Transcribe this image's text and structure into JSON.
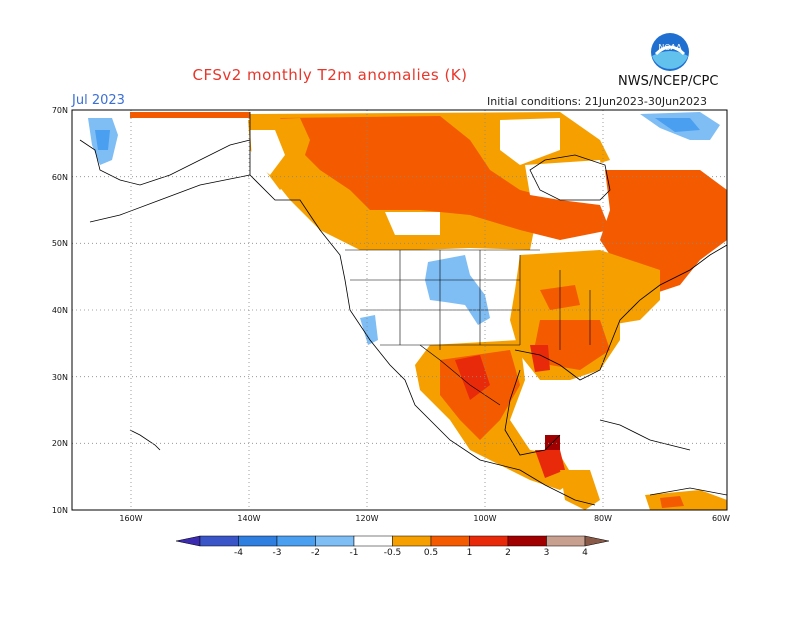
{
  "title": "CFSv2 monthly T2m anomalies (K)",
  "month": "Jul 2023",
  "initial_conditions": "Initial conditions: 21Jun2023-30Jun2023",
  "organization": "NWS/NCEP/CPC",
  "logo_text": "NOAA",
  "map": {
    "lat_ticks": [
      "70N",
      "60N",
      "50N",
      "40N",
      "30N",
      "20N",
      "10N"
    ],
    "lon_ticks": [
      "160W",
      "140W",
      "120W",
      "100W",
      "80W",
      "60W"
    ],
    "grid": "dotted"
  },
  "colorbar": {
    "labels": [
      "-4",
      "-3",
      "-2",
      "-1",
      "-0.5",
      "0.5",
      "1",
      "2",
      "3",
      "4"
    ],
    "colors": [
      "#3b2bb0",
      "#3a55c8",
      "#2f7fe0",
      "#4a9ff0",
      "#7fbdf5",
      "#ffffff",
      "#f5a000",
      "#f45a00",
      "#e82a0a",
      "#a00000",
      "#c8a090",
      "#8a5a48"
    ]
  }
}
